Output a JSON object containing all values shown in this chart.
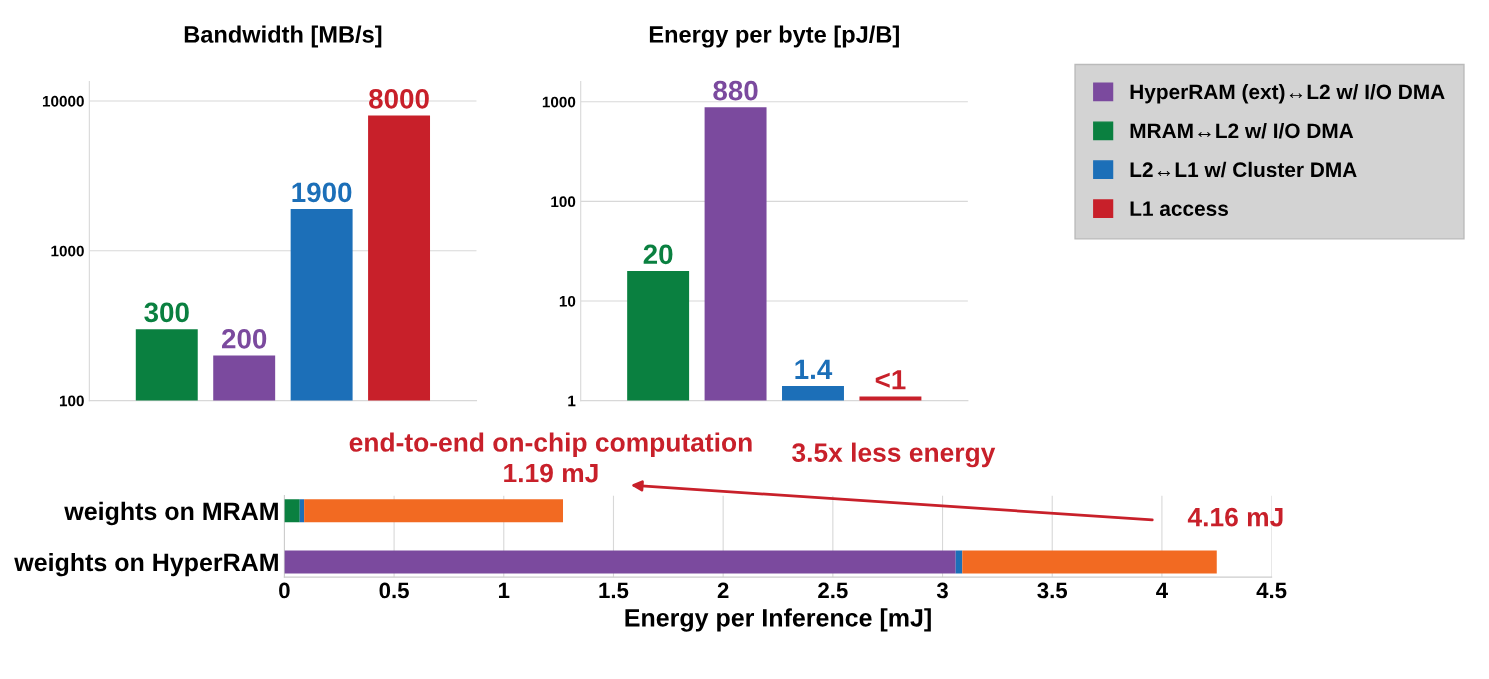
{
  "chart_data": [
    {
      "type": "bar",
      "title": "Bandwidth [MB/s]",
      "categories": [
        null,
        null,
        null,
        null
      ],
      "log": "y",
      "ylim": [
        100,
        13500
      ],
      "yticks": [
        100,
        1000,
        10000
      ],
      "grid": "y",
      "data_labels": true,
      "series": [
        {
          "color": "#7b4a9e",
          "values": [
            null,
            200,
            null,
            null
          ]
        },
        {
          "color": "#0a8040",
          "values": [
            300,
            null,
            null,
            null
          ]
        },
        {
          "color": "#1c6fb8",
          "values": [
            null,
            null,
            1900,
            null
          ]
        },
        {
          "color": "#c8202a",
          "values": [
            null,
            null,
            null,
            8000
          ]
        }
      ]
    },
    {
      "type": "bar",
      "title": "Energy per byte [pJ/B]",
      "categories": [
        null,
        null,
        null,
        null
      ],
      "log": "y",
      "ylim": [
        1,
        1600
      ],
      "yticks": [
        1,
        10,
        100,
        1000
      ],
      "grid": "y",
      "legend": "right",
      "series": [
        {
          "name": "HyperRAM (ext)↔L2 w/ I/O DMA",
          "color": "#7b4a9e",
          "values": [
            null,
            880,
            null,
            null
          ],
          "value_labels": [
            null,
            "880",
            null,
            null
          ]
        },
        {
          "name": "MRAM↔L2 w/ I/O DMA",
          "color": "#0a8040",
          "values": [
            20,
            null,
            null,
            null
          ],
          "value_labels": [
            "20",
            null,
            null,
            null
          ]
        },
        {
          "name": "L2↔L1 w/ Cluster DMA",
          "color": "#1c6fb8",
          "values": [
            null,
            null,
            1.4,
            null
          ],
          "value_labels": [
            null,
            null,
            "1.4",
            null
          ]
        },
        {
          "name": "L1 access",
          "color": "#c8202a",
          "values": [
            null,
            null,
            null,
            1.1
          ],
          "value_labels": [
            null,
            null,
            null,
            "<1"
          ]
        }
      ]
    },
    {
      "type": "bar",
      "orientation": "horizontal",
      "stacked": true,
      "categories": [
        "weights on MRAM",
        "weights on HyperRAM"
      ],
      "xlabel": "Energy per Inference [mJ]",
      "xlim": [
        0,
        4.5
      ],
      "xticks": [
        0,
        0.5,
        1,
        1.5,
        2,
        2.5,
        3,
        3.5,
        4,
        4.5
      ],
      "grid": "x",
      "annotations": [
        "end-to-end on-chip computation",
        "1.19 mJ",
        "3.5x less energy",
        "4.16 mJ"
      ],
      "series": [
        {
          "color": "#0a8040",
          "values": [
            0.07,
            null
          ]
        },
        {
          "color": "#7b4a9e",
          "values": [
            null,
            3.06
          ]
        },
        {
          "color": "#1c6fb8",
          "values": [
            0.02,
            0.03
          ]
        },
        {
          "color": "#f26a22",
          "values": [
            1.18,
            1.16
          ]
        }
      ]
    }
  ]
}
